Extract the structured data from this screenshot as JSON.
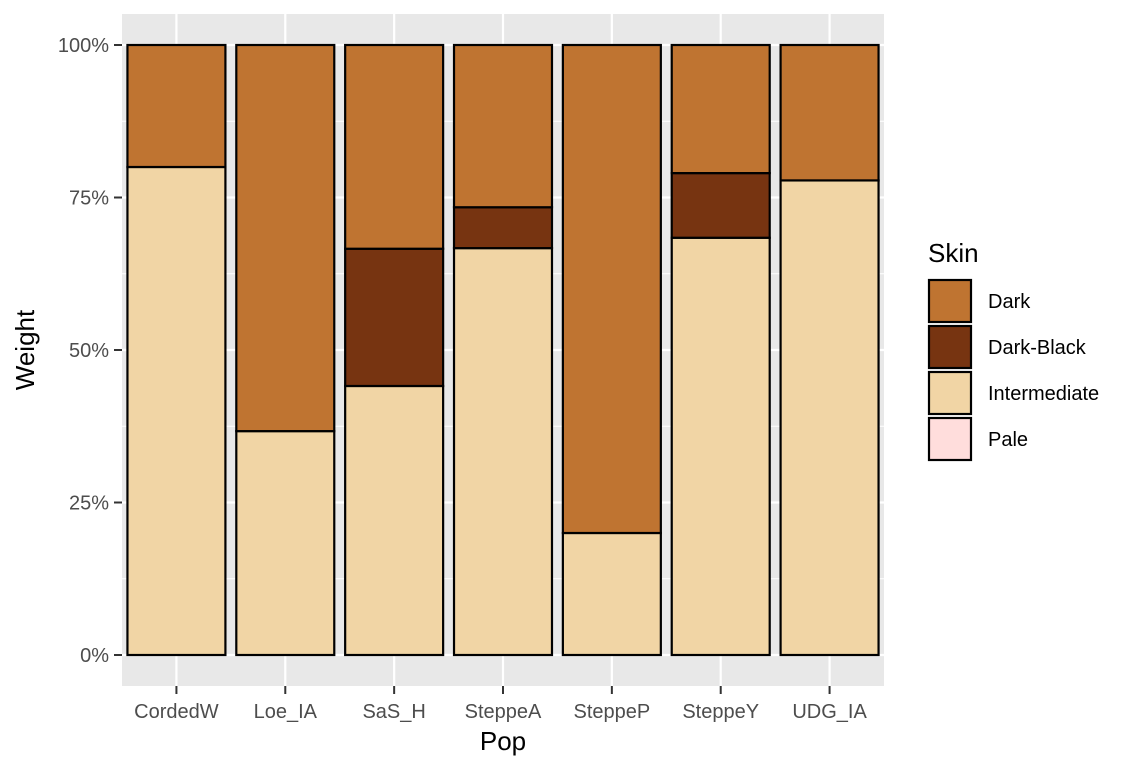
{
  "chart_data": {
    "type": "bar",
    "stacked": true,
    "categories": [
      "CordedW",
      "Loe_IA",
      "SaS_H",
      "SteppeA",
      "SteppeP",
      "SteppeY",
      "UDG_IA"
    ],
    "series": [
      {
        "name": "Intermediate",
        "values": [
          0.8,
          0.367,
          0.441,
          0.667,
          0.2,
          0.684,
          0.778
        ]
      },
      {
        "name": "Dark-Black",
        "values": [
          0.0,
          0.0,
          0.225,
          0.067,
          0.0,
          0.106,
          0.0
        ]
      },
      {
        "name": "Dark",
        "values": [
          0.2,
          0.633,
          0.334,
          0.266,
          0.8,
          0.21,
          0.222
        ]
      },
      {
        "name": "Pale",
        "values": [
          0,
          0,
          0,
          0,
          0,
          0,
          0
        ]
      }
    ],
    "stack_order": [
      "Intermediate",
      "Dark-Black",
      "Dark",
      "Pale"
    ],
    "colors": {
      "Dark": "#BF7431",
      "Dark-Black": "#773411",
      "Intermediate": "#F1D5A5",
      "Pale": "#FFDDDC"
    },
    "panel_bg": "#E8E8E8",
    "title": "",
    "xlabel": "Pop",
    "ylabel": "Weight",
    "ylim": [
      0,
      1
    ],
    "yticks": [
      0,
      0.25,
      0.5,
      0.75,
      1
    ],
    "ytick_labels": [
      "0%",
      "25%",
      "50%",
      "75%",
      "100%"
    ],
    "grid": true,
    "legend": {
      "title": "Skin",
      "entries": [
        "Dark",
        "Dark-Black",
        "Intermediate",
        "Pale"
      ],
      "placement": "right"
    }
  }
}
